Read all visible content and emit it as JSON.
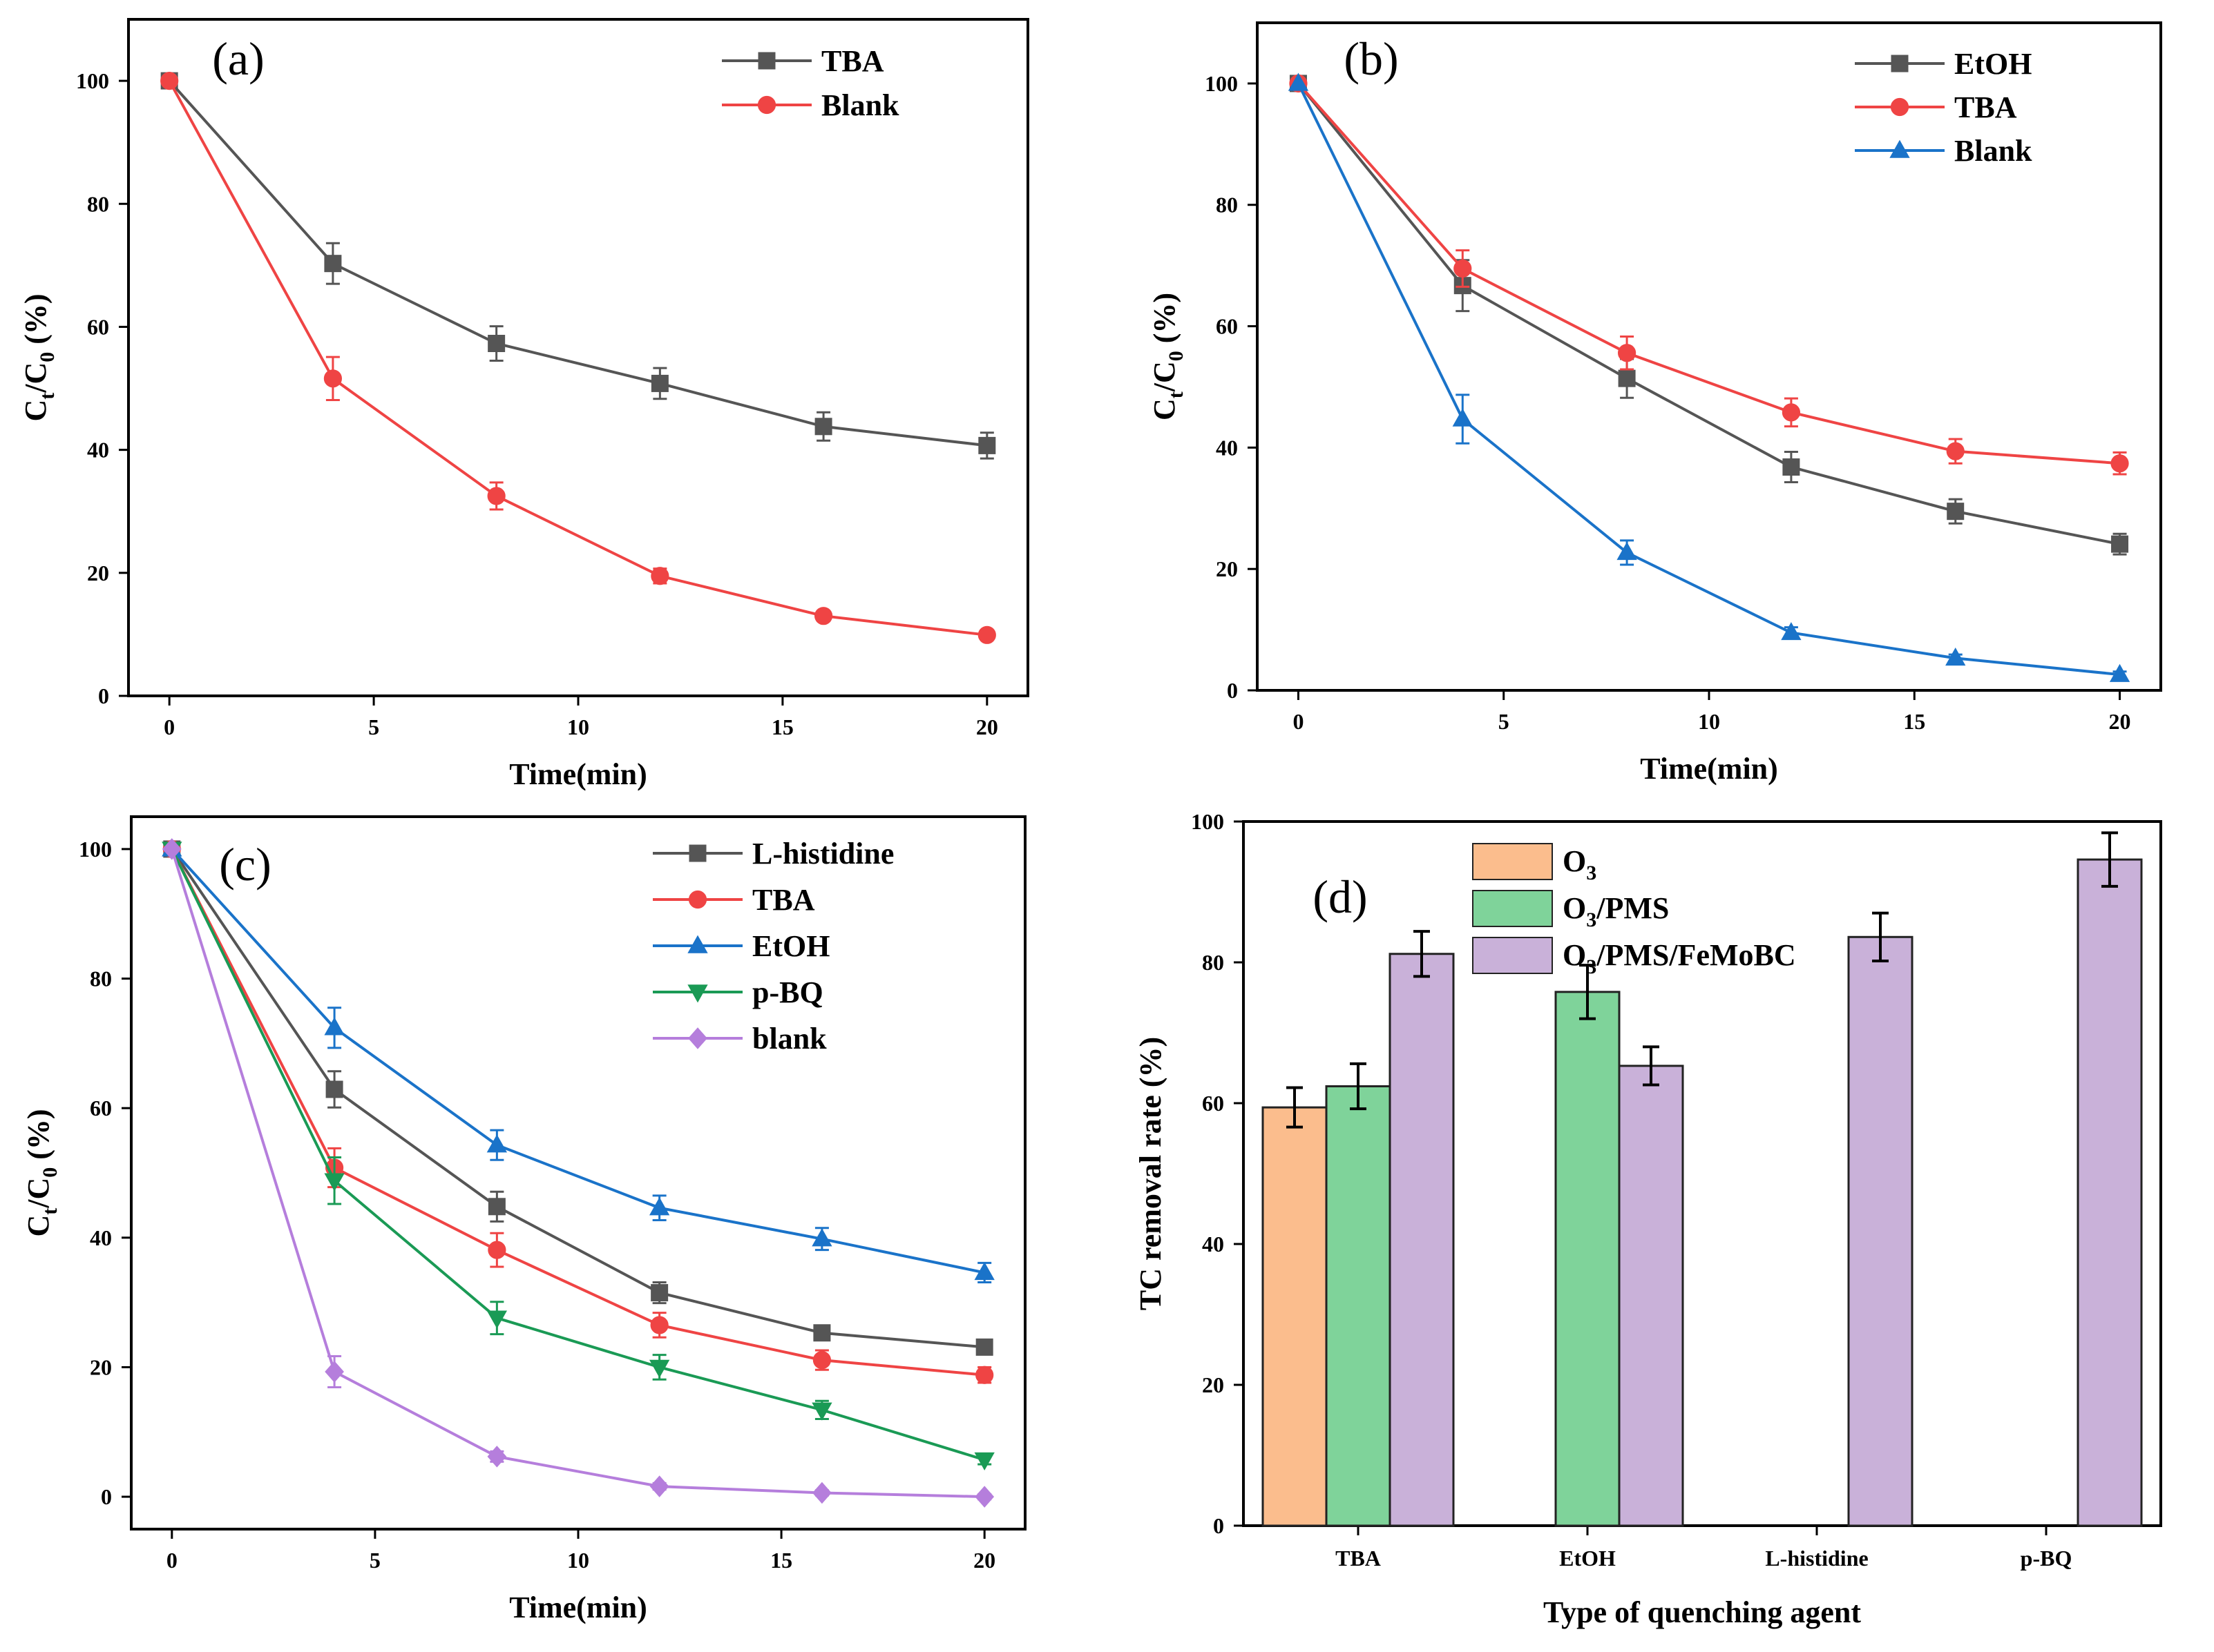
{
  "figure": {
    "panels": [
      "(a)",
      "(b)",
      "(c)",
      "(d)"
    ]
  },
  "chart_data": [
    {
      "panel": "(a)",
      "type": "line",
      "xlabel": "Time(min)",
      "ylabel": "Ct/C0 (%)",
      "ylabel_parts": {
        "main": "C",
        "sub1": "t",
        "mid": "/C",
        "sub2": "0",
        "end": " (%)"
      },
      "x": [
        0,
        4,
        8,
        12,
        16,
        20
      ],
      "xlim": [
        -1,
        21
      ],
      "ylim": [
        0,
        110
      ],
      "xticks": [
        0,
        5,
        10,
        15,
        20
      ],
      "yticks": [
        0,
        20,
        40,
        60,
        80,
        100
      ],
      "legend_position": "top-right",
      "series": [
        {
          "name": "TBA",
          "color": "#555555",
          "marker": "square",
          "values": [
            100,
            70.3,
            57.3,
            50.8,
            43.8,
            40.7
          ],
          "errors": [
            0,
            3.3,
            2.8,
            2.5,
            2.3,
            2.1
          ]
        },
        {
          "name": "Blank",
          "color": "#ef4444",
          "marker": "circle",
          "values": [
            100,
            51.6,
            32.5,
            19.5,
            13.0,
            9.9
          ],
          "errors": [
            0,
            3.5,
            2.2,
            1.2,
            0.8,
            0.7
          ]
        }
      ]
    },
    {
      "panel": "(b)",
      "type": "line",
      "xlabel": "Time(min)",
      "ylabel": "Ct/C0 (%)",
      "ylabel_parts": {
        "main": "C",
        "sub1": "t",
        "mid": "/C",
        "sub2": "0",
        "end": " (%)"
      },
      "x": [
        0,
        4,
        8,
        12,
        16,
        20
      ],
      "xlim": [
        -1,
        21
      ],
      "ylim": [
        0,
        110
      ],
      "xticks": [
        0,
        5,
        10,
        15,
        20
      ],
      "yticks": [
        0,
        20,
        40,
        60,
        80,
        100
      ],
      "legend_position": "top-right",
      "series": [
        {
          "name": "EtOH",
          "color": "#555555",
          "marker": "square",
          "values": [
            100,
            66.7,
            51.4,
            36.8,
            29.5,
            24.1
          ],
          "errors": [
            0,
            4.2,
            3.2,
            2.5,
            2.0,
            1.7
          ]
        },
        {
          "name": "TBA",
          "color": "#ef4444",
          "marker": "circle",
          "values": [
            100,
            69.5,
            55.6,
            45.8,
            39.4,
            37.4
          ],
          "errors": [
            0,
            3.0,
            2.7,
            2.3,
            2.0,
            1.8
          ]
        },
        {
          "name": "Blank",
          "color": "#1a73c9",
          "marker": "triangle-up",
          "values": [
            100,
            44.7,
            22.7,
            9.5,
            5.3,
            2.6
          ],
          "errors": [
            0,
            4.0,
            2.0,
            0.9,
            0.6,
            0.5
          ]
        }
      ]
    },
    {
      "panel": "(c)",
      "type": "line",
      "xlabel": "Time(min)",
      "ylabel": "Ct/C0 (%)",
      "ylabel_parts": {
        "main": "C",
        "sub1": "t",
        "mid": "/C",
        "sub2": "0",
        "end": " (%)"
      },
      "x": [
        0,
        4,
        8,
        12,
        16,
        20
      ],
      "xlim": [
        -1,
        21
      ],
      "ylim": [
        -5,
        105
      ],
      "xticks": [
        0,
        5,
        10,
        15,
        20
      ],
      "yticks": [
        0,
        20,
        40,
        60,
        80,
        100
      ],
      "legend_position": "top-right",
      "series": [
        {
          "name": "L-histidine",
          "color": "#555555",
          "marker": "square",
          "values": [
            100,
            62.9,
            44.8,
            31.5,
            25.3,
            23.1
          ],
          "errors": [
            0,
            2.8,
            2.3,
            1.6,
            1.0,
            0.8
          ]
        },
        {
          "name": "TBA",
          "color": "#ef4444",
          "marker": "circle",
          "values": [
            100,
            50.8,
            38.1,
            26.5,
            21.1,
            18.8
          ],
          "errors": [
            0,
            3.0,
            2.6,
            1.9,
            1.5,
            1.2
          ]
        },
        {
          "name": "EtOH",
          "color": "#1a73c9",
          "marker": "triangle-up",
          "values": [
            100,
            72.4,
            54.3,
            44.6,
            39.8,
            34.6
          ],
          "errors": [
            0,
            3.1,
            2.3,
            1.9,
            1.7,
            1.5
          ]
        },
        {
          "name": "p-BQ",
          "color": "#1a9a55",
          "marker": "triangle-down",
          "values": [
            100,
            48.8,
            27.6,
            20.0,
            13.4,
            5.7
          ],
          "errors": [
            0,
            3.6,
            2.5,
            1.9,
            1.4,
            0.7
          ]
        },
        {
          "name": "blank",
          "color": "#b57edc",
          "marker": "diamond",
          "values": [
            100,
            19.3,
            6.2,
            1.6,
            0.6,
            0.0
          ],
          "errors": [
            0,
            2.4,
            0.8,
            0.5,
            0.4,
            0.4
          ]
        }
      ]
    },
    {
      "panel": "(d)",
      "type": "bar",
      "xlabel": "Type of quenching agent",
      "ylabel": "TC removal rate (%)",
      "categories": [
        "TBA",
        "EtOH",
        "L-histidine",
        "p-BQ"
      ],
      "ylim": [
        0,
        100
      ],
      "yticks": [
        0,
        20,
        40,
        60,
        80,
        100
      ],
      "legend_position": "top-left",
      "series": [
        {
          "name": "O3",
          "label_parts": {
            "main": "O",
            "sub": "3",
            "end": ""
          },
          "color": "#fbbd8d",
          "values": [
            59.4,
            null,
            null,
            null
          ],
          "errors": [
            2.8,
            null,
            null,
            null
          ]
        },
        {
          "name": "O3/PMS",
          "label_parts": {
            "main": "O",
            "sub": "3",
            "end": "/PMS"
          },
          "color": "#7fd39a",
          "values": [
            62.4,
            75.8,
            null,
            null
          ],
          "errors": [
            3.2,
            3.8,
            null,
            null
          ]
        },
        {
          "name": "O3/PMS/FeMoBC",
          "label_parts": {
            "main": "O",
            "sub": "3",
            "end": "/PMS/FeMoBC"
          },
          "color": "#c9b1d9",
          "values": [
            81.2,
            65.3,
            83.6,
            94.6
          ],
          "errors": [
            3.2,
            2.7,
            3.4,
            3.8
          ]
        }
      ]
    }
  ]
}
